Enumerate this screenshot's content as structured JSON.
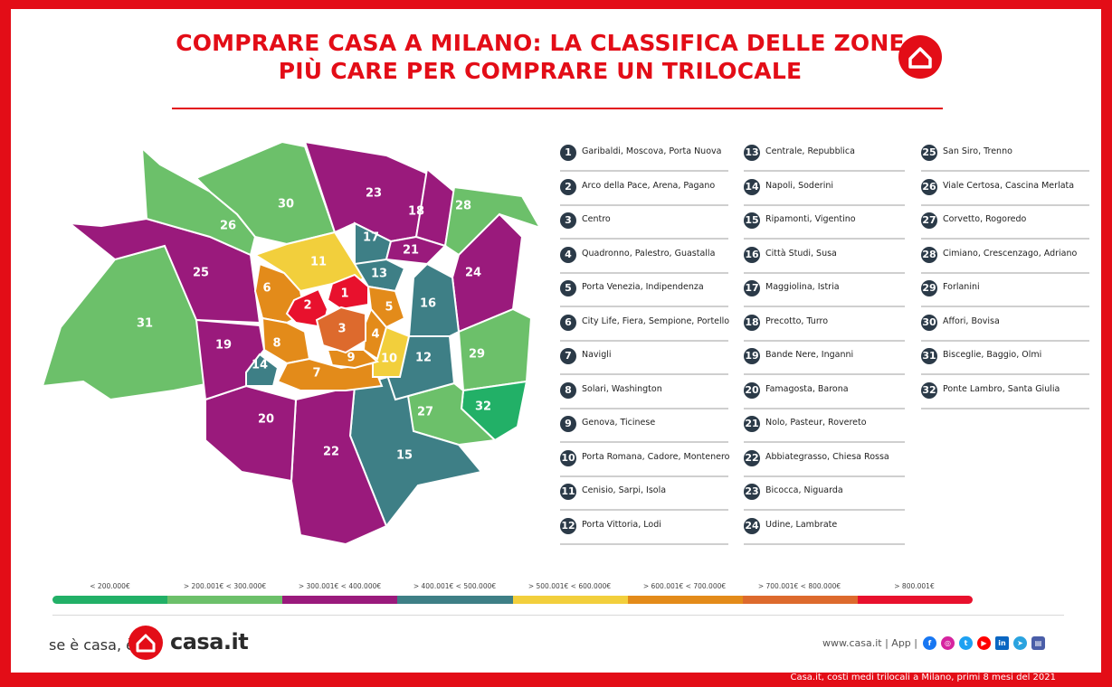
{
  "title_line1": "COMPRARE CASA A MILANO: LA CLASSIFICA DELLE ZONE",
  "title_line2": "PIÙ CARE PER COMPRARE UN TRILOCALE",
  "colors": {
    "brand_red": "#e30d17",
    "dark_green": "#22b067",
    "light_green": "#6cc06a",
    "purple": "#9a1a7c",
    "teal": "#3e7f86",
    "yellow": "#f2cf3c",
    "orange": "#e38b1a",
    "dark_orange": "#dd6a2d",
    "red": "#e8112d"
  },
  "zones": [
    {
      "n": "1",
      "name": "Garibaldi, Moscova, Porta Nuova"
    },
    {
      "n": "2",
      "name": "Arco della Pace, Arena, Pagano"
    },
    {
      "n": "3",
      "name": "Centro"
    },
    {
      "n": "4",
      "name": "Quadronno, Palestro, Guastalla"
    },
    {
      "n": "5",
      "name": "Porta Venezia, Indipendenza"
    },
    {
      "n": "6",
      "name": "City Life, Fiera, Sempione, Portello"
    },
    {
      "n": "7",
      "name": "Navigli"
    },
    {
      "n": "8",
      "name": "Solari, Washington"
    },
    {
      "n": "9",
      "name": "Genova, Ticinese"
    },
    {
      "n": "10",
      "name": "Porta Romana, Cadore, Montenero"
    },
    {
      "n": "11",
      "name": "Cenisio, Sarpi, Isola"
    },
    {
      "n": "12",
      "name": "Porta Vittoria, Lodi"
    },
    {
      "n": "13",
      "name": "Centrale, Repubblica"
    },
    {
      "n": "14",
      "name": "Napoli, Soderini"
    },
    {
      "n": "15",
      "name": "Ripamonti, Vigentino"
    },
    {
      "n": "16",
      "name": "Città Studi, Susa"
    },
    {
      "n": "17",
      "name": "Maggiolina, Istria"
    },
    {
      "n": "18",
      "name": "Precotto, Turro"
    },
    {
      "n": "19",
      "name": "Bande Nere, Inganni"
    },
    {
      "n": "20",
      "name": "Famagosta, Barona"
    },
    {
      "n": "21",
      "name": "Nolo, Pasteur, Rovereto"
    },
    {
      "n": "22",
      "name": "Abbiategrasso, Chiesa Rossa"
    },
    {
      "n": "23",
      "name": "Bicocca, Niguarda"
    },
    {
      "n": "24",
      "name": "Udine, Lambrate"
    },
    {
      "n": "25",
      "name": "San Siro, Trenno"
    },
    {
      "n": "26",
      "name": "Viale Certosa, Cascina Merlata"
    },
    {
      "n": "27",
      "name": "Corvetto, Rogoredo"
    },
    {
      "n": "28",
      "name": "Cimiano, Crescenzago, Adriano"
    },
    {
      "n": "29",
      "name": "Forlanini"
    },
    {
      "n": "30",
      "name": "Affori, Bovisa"
    },
    {
      "n": "31",
      "name": "Bisceglie, Baggio, Olmi"
    },
    {
      "n": "32",
      "name": "Ponte Lambro, Santa Giulia"
    }
  ],
  "price_scale": [
    {
      "label": "< 200.000€",
      "color": "#22b067"
    },
    {
      "label": "> 200.001€ < 300.000€",
      "color": "#6cc06a"
    },
    {
      "label": "> 300.001€ < 400.000€",
      "color": "#9a1a7c"
    },
    {
      "label": "> 400.001€ < 500.000€",
      "color": "#3e7f86"
    },
    {
      "label": "> 500.001€ < 600.000€",
      "color": "#f2cf3c"
    },
    {
      "label": "> 600.001€ < 700.000€",
      "color": "#e38b1a"
    },
    {
      "label": "> 700.001€ < 800.000€",
      "color": "#dd6a2d"
    },
    {
      "label": "> 800.001€",
      "color": "#e8112d"
    }
  ],
  "footer": {
    "tagline": "se è casa, è",
    "brand": "casa.it",
    "site": "www.casa.it | App |",
    "source": "Casa.it, costi medi trilocali a Milano, primi 8 mesi del 2021"
  },
  "icons": [
    "home-icon",
    "facebook-icon",
    "instagram-icon",
    "twitter-icon",
    "youtube-icon",
    "linkedin-icon",
    "telegram-icon",
    "app-icon"
  ]
}
